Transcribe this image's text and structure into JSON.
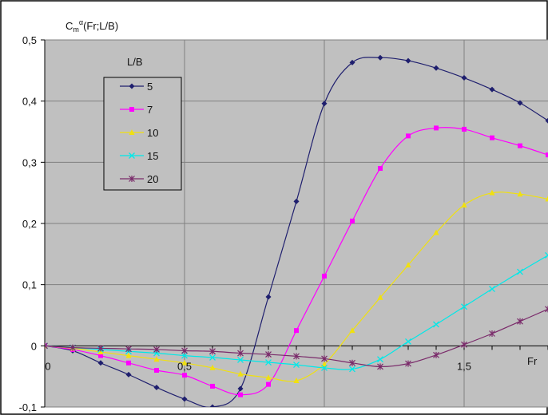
{
  "chart_data": {
    "type": "line",
    "ylabel": "Cmα(Fr;L/B)",
    "ylabel_parts": [
      "C",
      "m",
      "α",
      "(Fr;L/B)"
    ],
    "xlabel": "Fr",
    "xlim": [
      0,
      1.8
    ],
    "ylim": [
      -0.1,
      0.5
    ],
    "grid": true,
    "background": "#c0c0c0",
    "legend_title": "L/B",
    "legend_position": "top-left",
    "x_ticks": [
      {
        "value": 0,
        "label": "0"
      },
      {
        "value": 0.5,
        "label": "0,5"
      },
      {
        "value": 1.5,
        "label": "1,5"
      }
    ],
    "y_ticks": [
      {
        "value": -0.1,
        "label": "-0,1"
      },
      {
        "value": 0,
        "label": "0"
      },
      {
        "value": 0.1,
        "label": "0,1"
      },
      {
        "value": 0.2,
        "label": "0,2"
      },
      {
        "value": 0.3,
        "label": "0,3"
      },
      {
        "value": 0.4,
        "label": "0,4"
      },
      {
        "value": 0.5,
        "label": "0,5"
      }
    ],
    "series": [
      {
        "name": "5",
        "color": "#1f1f6e",
        "marker": "diamond",
        "points": [
          [
            0,
            0
          ],
          [
            0.1,
            -0.008
          ],
          [
            0.2,
            -0.028
          ],
          [
            0.3,
            -0.047
          ],
          [
            0.4,
            -0.068
          ],
          [
            0.5,
            -0.087
          ],
          [
            0.6,
            -0.1
          ],
          [
            0.7,
            -0.07
          ],
          [
            0.8,
            0.08
          ],
          [
            0.9,
            0.236
          ],
          [
            1.0,
            0.396
          ],
          [
            1.1,
            0.463
          ],
          [
            1.2,
            0.471
          ],
          [
            1.3,
            0.466
          ],
          [
            1.4,
            0.454
          ],
          [
            1.5,
            0.438
          ],
          [
            1.6,
            0.419
          ],
          [
            1.7,
            0.397
          ],
          [
            1.8,
            0.368
          ]
        ]
      },
      {
        "name": "7",
        "color": "#ff00ff",
        "marker": "square",
        "points": [
          [
            0,
            0
          ],
          [
            0.1,
            -0.006
          ],
          [
            0.2,
            -0.016
          ],
          [
            0.3,
            -0.028
          ],
          [
            0.4,
            -0.04
          ],
          [
            0.5,
            -0.048
          ],
          [
            0.6,
            -0.066
          ],
          [
            0.7,
            -0.08
          ],
          [
            0.8,
            -0.063
          ],
          [
            0.9,
            0.025
          ],
          [
            1.0,
            0.114
          ],
          [
            1.1,
            0.204
          ],
          [
            1.2,
            0.29
          ],
          [
            1.3,
            0.343
          ],
          [
            1.4,
            0.356
          ],
          [
            1.5,
            0.354
          ],
          [
            1.6,
            0.34
          ],
          [
            1.7,
            0.327
          ],
          [
            1.8,
            0.312
          ]
        ]
      },
      {
        "name": "10",
        "color": "#f0e010",
        "marker": "triangle",
        "points": [
          [
            0,
            0
          ],
          [
            0.1,
            -0.004
          ],
          [
            0.2,
            -0.01
          ],
          [
            0.3,
            -0.016
          ],
          [
            0.4,
            -0.022
          ],
          [
            0.5,
            -0.028
          ],
          [
            0.6,
            -0.036
          ],
          [
            0.7,
            -0.046
          ],
          [
            0.8,
            -0.052
          ],
          [
            0.9,
            -0.057
          ],
          [
            1.0,
            -0.03
          ],
          [
            1.1,
            0.025
          ],
          [
            1.2,
            0.079
          ],
          [
            1.3,
            0.132
          ],
          [
            1.4,
            0.185
          ],
          [
            1.5,
            0.23
          ],
          [
            1.6,
            0.25
          ],
          [
            1.7,
            0.248
          ],
          [
            1.8,
            0.24
          ]
        ]
      },
      {
        "name": "15",
        "color": "#00e8e8",
        "marker": "cross",
        "points": [
          [
            0,
            0
          ],
          [
            0.1,
            -0.003
          ],
          [
            0.2,
            -0.006
          ],
          [
            0.3,
            -0.009
          ],
          [
            0.4,
            -0.012
          ],
          [
            0.5,
            -0.016
          ],
          [
            0.6,
            -0.019
          ],
          [
            0.7,
            -0.023
          ],
          [
            0.8,
            -0.027
          ],
          [
            0.9,
            -0.031
          ],
          [
            1.0,
            -0.036
          ],
          [
            1.1,
            -0.038
          ],
          [
            1.2,
            -0.022
          ],
          [
            1.3,
            0.007
          ],
          [
            1.4,
            0.035
          ],
          [
            1.5,
            0.064
          ],
          [
            1.6,
            0.093
          ],
          [
            1.7,
            0.121
          ],
          [
            1.8,
            0.148
          ]
        ]
      },
      {
        "name": "20",
        "color": "#7a2a6a",
        "marker": "asterisk",
        "points": [
          [
            0,
            0
          ],
          [
            0.1,
            -0.003
          ],
          [
            0.2,
            -0.004
          ],
          [
            0.3,
            -0.005
          ],
          [
            0.4,
            -0.006
          ],
          [
            0.5,
            -0.008
          ],
          [
            0.6,
            -0.009
          ],
          [
            0.7,
            -0.012
          ],
          [
            0.8,
            -0.014
          ],
          [
            0.9,
            -0.017
          ],
          [
            1.0,
            -0.021
          ],
          [
            1.1,
            -0.028
          ],
          [
            1.2,
            -0.034
          ],
          [
            1.3,
            -0.029
          ],
          [
            1.4,
            -0.015
          ],
          [
            1.5,
            0.002
          ],
          [
            1.6,
            0.02
          ],
          [
            1.7,
            0.04
          ],
          [
            1.8,
            0.06
          ]
        ]
      }
    ]
  }
}
